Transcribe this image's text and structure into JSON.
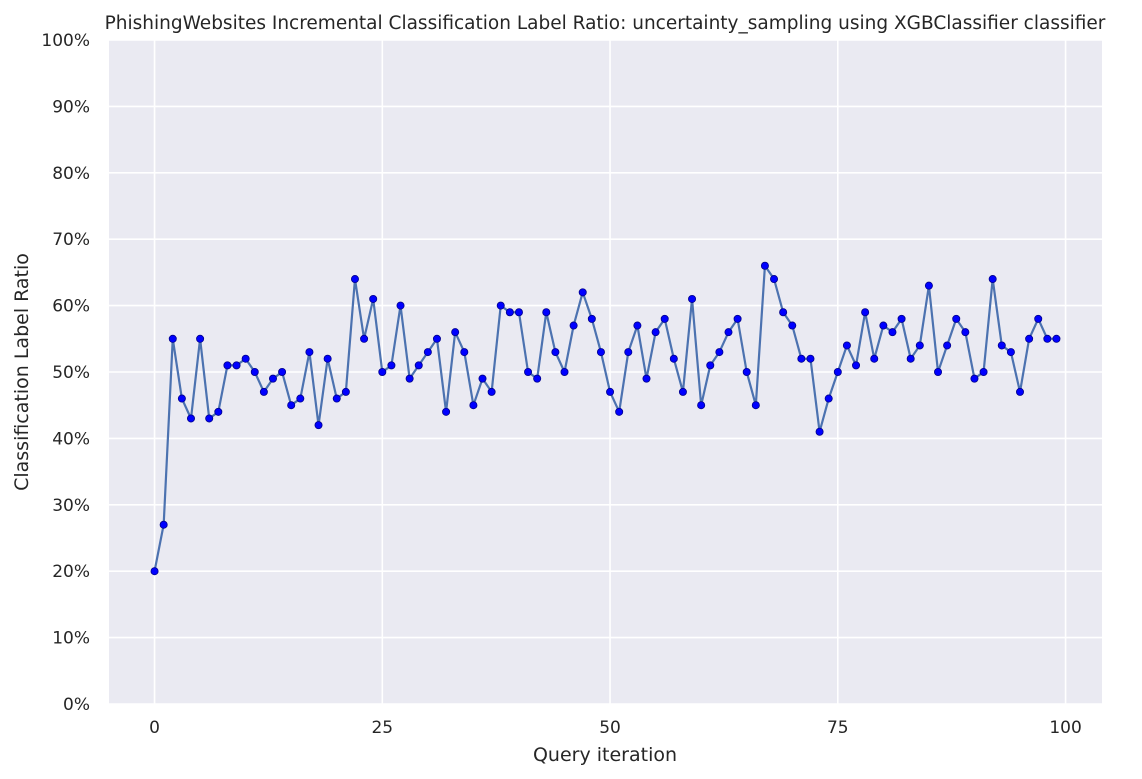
{
  "chart_data": {
    "type": "line",
    "title": "PhishingWebsites Incremental Classification Label Ratio: uncertainty_sampling using XGBClassifier classifier",
    "xlabel": "Query iteration",
    "ylabel": "Classification Label Ratio",
    "xlim": [
      -5,
      104
    ],
    "ylim": [
      0,
      100
    ],
    "x_ticks": [
      0,
      25,
      50,
      75,
      100
    ],
    "x_tick_labels": [
      "0",
      "25",
      "50",
      "75",
      "100"
    ],
    "y_ticks": [
      0,
      10,
      20,
      30,
      40,
      50,
      60,
      70,
      80,
      90,
      100
    ],
    "y_tick_labels": [
      "0%",
      "10%",
      "20%",
      "30%",
      "40%",
      "50%",
      "60%",
      "70%",
      "80%",
      "90%",
      "100%"
    ],
    "grid": true,
    "colors": {
      "background": "#eaeaf2",
      "grid": "#ffffff",
      "line": "#4c72b0",
      "marker": "#0000ff",
      "marker_edge": "#00008b"
    },
    "series": [
      {
        "x": [
          0,
          1,
          2,
          3,
          4,
          5,
          6,
          7,
          8,
          9,
          10,
          11,
          12,
          13,
          14,
          15,
          16,
          17,
          18,
          19,
          20,
          21,
          22,
          23,
          24,
          25,
          26,
          27,
          28,
          29,
          30,
          31,
          32,
          33,
          34,
          35,
          36,
          37,
          38,
          39,
          40,
          41,
          42,
          43,
          44,
          45,
          46,
          47,
          48,
          49,
          50,
          51,
          52,
          53,
          54,
          55,
          56,
          57,
          58,
          59,
          60,
          61,
          62,
          63,
          64,
          65,
          66,
          67,
          68,
          69,
          70,
          71,
          72,
          73,
          74,
          75,
          76,
          77,
          78,
          79,
          80,
          81,
          82,
          83,
          84,
          85,
          86,
          87,
          88,
          89,
          90,
          91,
          92,
          93,
          94,
          95,
          96,
          97,
          98,
          99
        ],
        "values": [
          20,
          27,
          55,
          46,
          43,
          55,
          43,
          44,
          51,
          51,
          52,
          50,
          47,
          49,
          50,
          45,
          46,
          53,
          42,
          52,
          46,
          47,
          64,
          55,
          61,
          50,
          51,
          60,
          49,
          51,
          53,
          55,
          44,
          56,
          53,
          45,
          49,
          47,
          60,
          59,
          59,
          50,
          49,
          59,
          53,
          50,
          57,
          62,
          58,
          53,
          47,
          44,
          53,
          57,
          49,
          56,
          58,
          52,
          47,
          61,
          45,
          51,
          53,
          56,
          58,
          50,
          45,
          66,
          64,
          59,
          57,
          52,
          52,
          41,
          46,
          50,
          54,
          51,
          59,
          52,
          57,
          56,
          58,
          52,
          54,
          63,
          50,
          54,
          58,
          56,
          49,
          50,
          64,
          54,
          53,
          47,
          55,
          58,
          55,
          55
        ]
      }
    ]
  }
}
